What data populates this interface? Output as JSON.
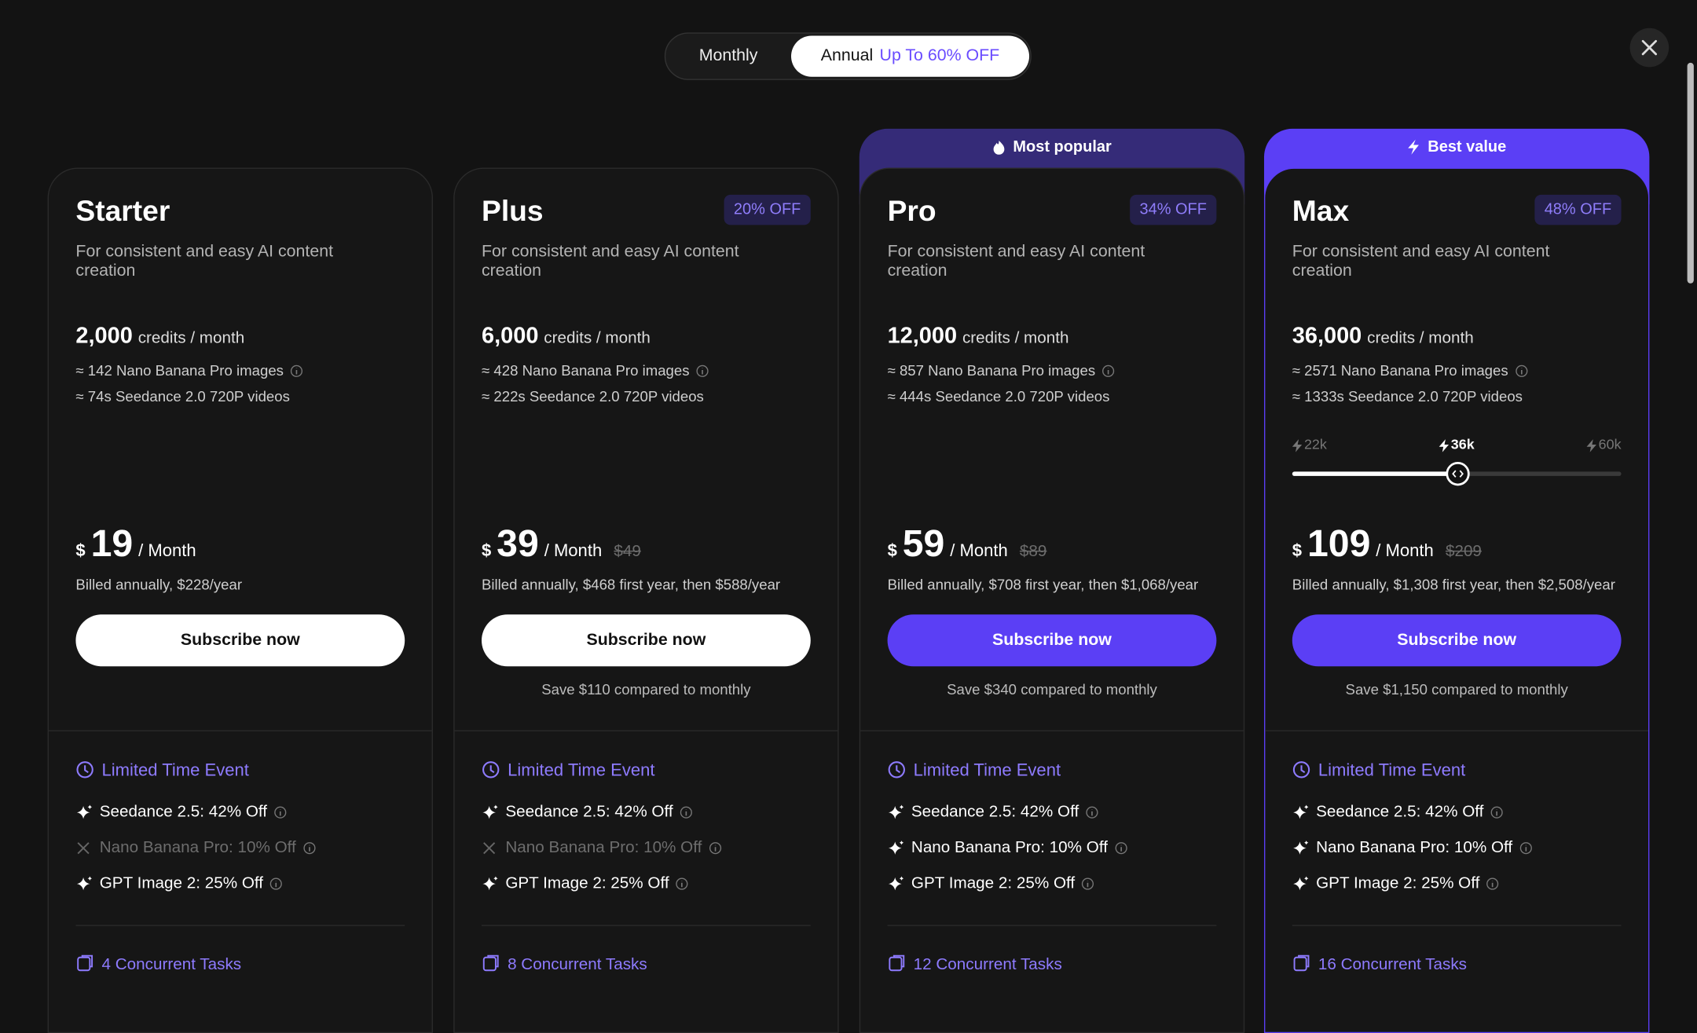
{
  "billing_toggle": {
    "monthly": "Monthly",
    "annual": "Annual",
    "annual_badge": "Up To 60% OFF"
  },
  "plans": [
    {
      "name": "Starter",
      "description": "For consistent and easy AI content creation",
      "credits": "2,000",
      "credits_unit": "credits / month",
      "images": "≈ 142 Nano Banana Pro images",
      "videos": "≈ 74s Seedance 2.0 720P videos",
      "currency": "$",
      "price": "19",
      "period": "/ Month",
      "billing": "Billed annually, $228/year",
      "button": "Subscribe now",
      "button_color": "#ffffff",
      "button_text_color": "#111111",
      "event_title": "Limited Time Event",
      "perks": [
        {
          "text": "Seedance 2.5: 42% Off",
          "included": true
        },
        {
          "text": "Nano Banana Pro: 10% Off",
          "included": false
        },
        {
          "text": "GPT Image 2: 25% Off",
          "included": true
        }
      ],
      "concurrent": "4 Concurrent Tasks"
    },
    {
      "name": "Plus",
      "discount": "20% OFF",
      "description": "For consistent and easy AI content creation",
      "credits": "6,000",
      "credits_unit": "credits / month",
      "images": "≈ 428 Nano Banana Pro images",
      "videos": "≈ 222s Seedance 2.0 720P videos",
      "currency": "$",
      "price": "39",
      "period": "/ Month",
      "original_price": "$49",
      "billing": "Billed annually, $468 first year, then $588/year",
      "button": "Subscribe now",
      "button_color": "#ffffff",
      "button_text_color": "#111111",
      "savings": "Save $110 compared to monthly",
      "event_title": "Limited Time Event",
      "perks": [
        {
          "text": "Seedance 2.5: 42% Off",
          "included": true
        },
        {
          "text": "Nano Banana Pro: 10% Off",
          "included": false
        },
        {
          "text": "GPT Image 2: 25% Off",
          "included": true
        }
      ],
      "concurrent": "8 Concurrent Tasks"
    },
    {
      "header": "Most popular",
      "header_color": "#352b78",
      "name": "Pro",
      "discount": "34% OFF",
      "description": "For consistent and easy AI content creation",
      "credits": "12,000",
      "credits_unit": "credits / month",
      "images": "≈ 857 Nano Banana Pro images",
      "videos": "≈ 444s Seedance 2.0 720P videos",
      "currency": "$",
      "price": "59",
      "period": "/ Month",
      "original_price": "$89",
      "billing": "Billed annually, $708 first year, then $1,068/year",
      "button": "Subscribe now",
      "button_color": "#5b3ff5",
      "button_text_color": "#ffffff",
      "savings": "Save $340 compared to monthly",
      "event_title": "Limited Time Event",
      "perks": [
        {
          "text": "Seedance 2.5: 42% Off",
          "included": true
        },
        {
          "text": "Nano Banana Pro: 10% Off",
          "included": true
        },
        {
          "text": "GPT Image 2: 25% Off",
          "included": true
        }
      ],
      "concurrent": "12 Concurrent Tasks"
    },
    {
      "header": "Best value",
      "header_color": "#5b3ff5",
      "border_color": "#5b3ff5",
      "name": "Max",
      "discount": "48% OFF",
      "description": "For consistent and easy AI content creation",
      "credits": "36,000",
      "credits_unit": "credits / month",
      "images": "≈ 2571 Nano Banana Pro images",
      "videos": "≈ 1333s Seedance 2.0 720P videos",
      "slider": {
        "ticks": [
          "22k",
          "36k",
          "60k"
        ],
        "selected": 1
      },
      "currency": "$",
      "price": "109",
      "period": "/ Month",
      "original_price": "$209",
      "billing": "Billed annually, $1,308 first year, then $2,508/year",
      "button": "Subscribe now",
      "button_color": "#5b3ff5",
      "button_text_color": "#ffffff",
      "savings": "Save $1,150 compared to monthly",
      "event_title": "Limited Time Event",
      "perks": [
        {
          "text": "Seedance 2.5: 42% Off",
          "included": true
        },
        {
          "text": "Nano Banana Pro: 10% Off",
          "included": true
        },
        {
          "text": "GPT Image 2: 25% Off",
          "included": true
        }
      ],
      "concurrent": "16 Concurrent Tasks"
    }
  ]
}
